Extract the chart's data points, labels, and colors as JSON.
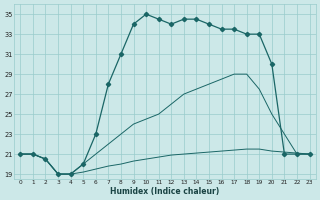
{
  "xlabel": "Humidex (Indice chaleur)",
  "bg_color": "#cce8e8",
  "grid_color": "#99cccc",
  "line_color": "#1a6666",
  "xlim": [
    -0.5,
    23.5
  ],
  "ylim": [
    18.5,
    36
  ],
  "xtick_vals": [
    0,
    1,
    2,
    3,
    4,
    5,
    6,
    7,
    8,
    9,
    10,
    11,
    12,
    13,
    14,
    15,
    16,
    17,
    18,
    19,
    20,
    21,
    22,
    23
  ],
  "ytick_vals": [
    19,
    21,
    23,
    25,
    27,
    29,
    31,
    33,
    35
  ],
  "curve1_x": [
    0,
    1,
    2,
    3,
    4,
    5,
    6,
    7,
    8,
    9,
    10,
    11,
    12,
    13,
    14,
    15,
    16,
    17,
    18,
    19,
    20,
    21,
    22,
    23
  ],
  "curve1_y": [
    21,
    21,
    20.5,
    19,
    19,
    20,
    23,
    28,
    31,
    34,
    35,
    34.5,
    34,
    34.5,
    34.5,
    34,
    33.5,
    33.5,
    33,
    33,
    30,
    21,
    21,
    21
  ],
  "curve2_x": [
    0,
    1,
    2,
    3,
    4,
    5,
    6,
    7,
    8,
    9,
    10,
    11,
    12,
    13,
    14,
    15,
    16,
    17,
    18,
    19,
    20,
    21,
    22,
    23
  ],
  "curve2_y": [
    21,
    21,
    20.5,
    19,
    19,
    20,
    21,
    22,
    23,
    24,
    24.5,
    25,
    26,
    27,
    27.5,
    28,
    28.5,
    29,
    29,
    27.5,
    25,
    23,
    21,
    21
  ],
  "curve3_x": [
    0,
    1,
    2,
    3,
    4,
    5,
    6,
    7,
    8,
    9,
    10,
    11,
    12,
    13,
    14,
    15,
    16,
    17,
    18,
    19,
    20,
    21,
    22,
    23
  ],
  "curve3_y": [
    21,
    21,
    20.5,
    19,
    19,
    19.2,
    19.5,
    19.8,
    20.0,
    20.3,
    20.5,
    20.7,
    20.9,
    21.0,
    21.1,
    21.2,
    21.3,
    21.4,
    21.5,
    21.5,
    21.3,
    21.2,
    21.1,
    21.0
  ]
}
